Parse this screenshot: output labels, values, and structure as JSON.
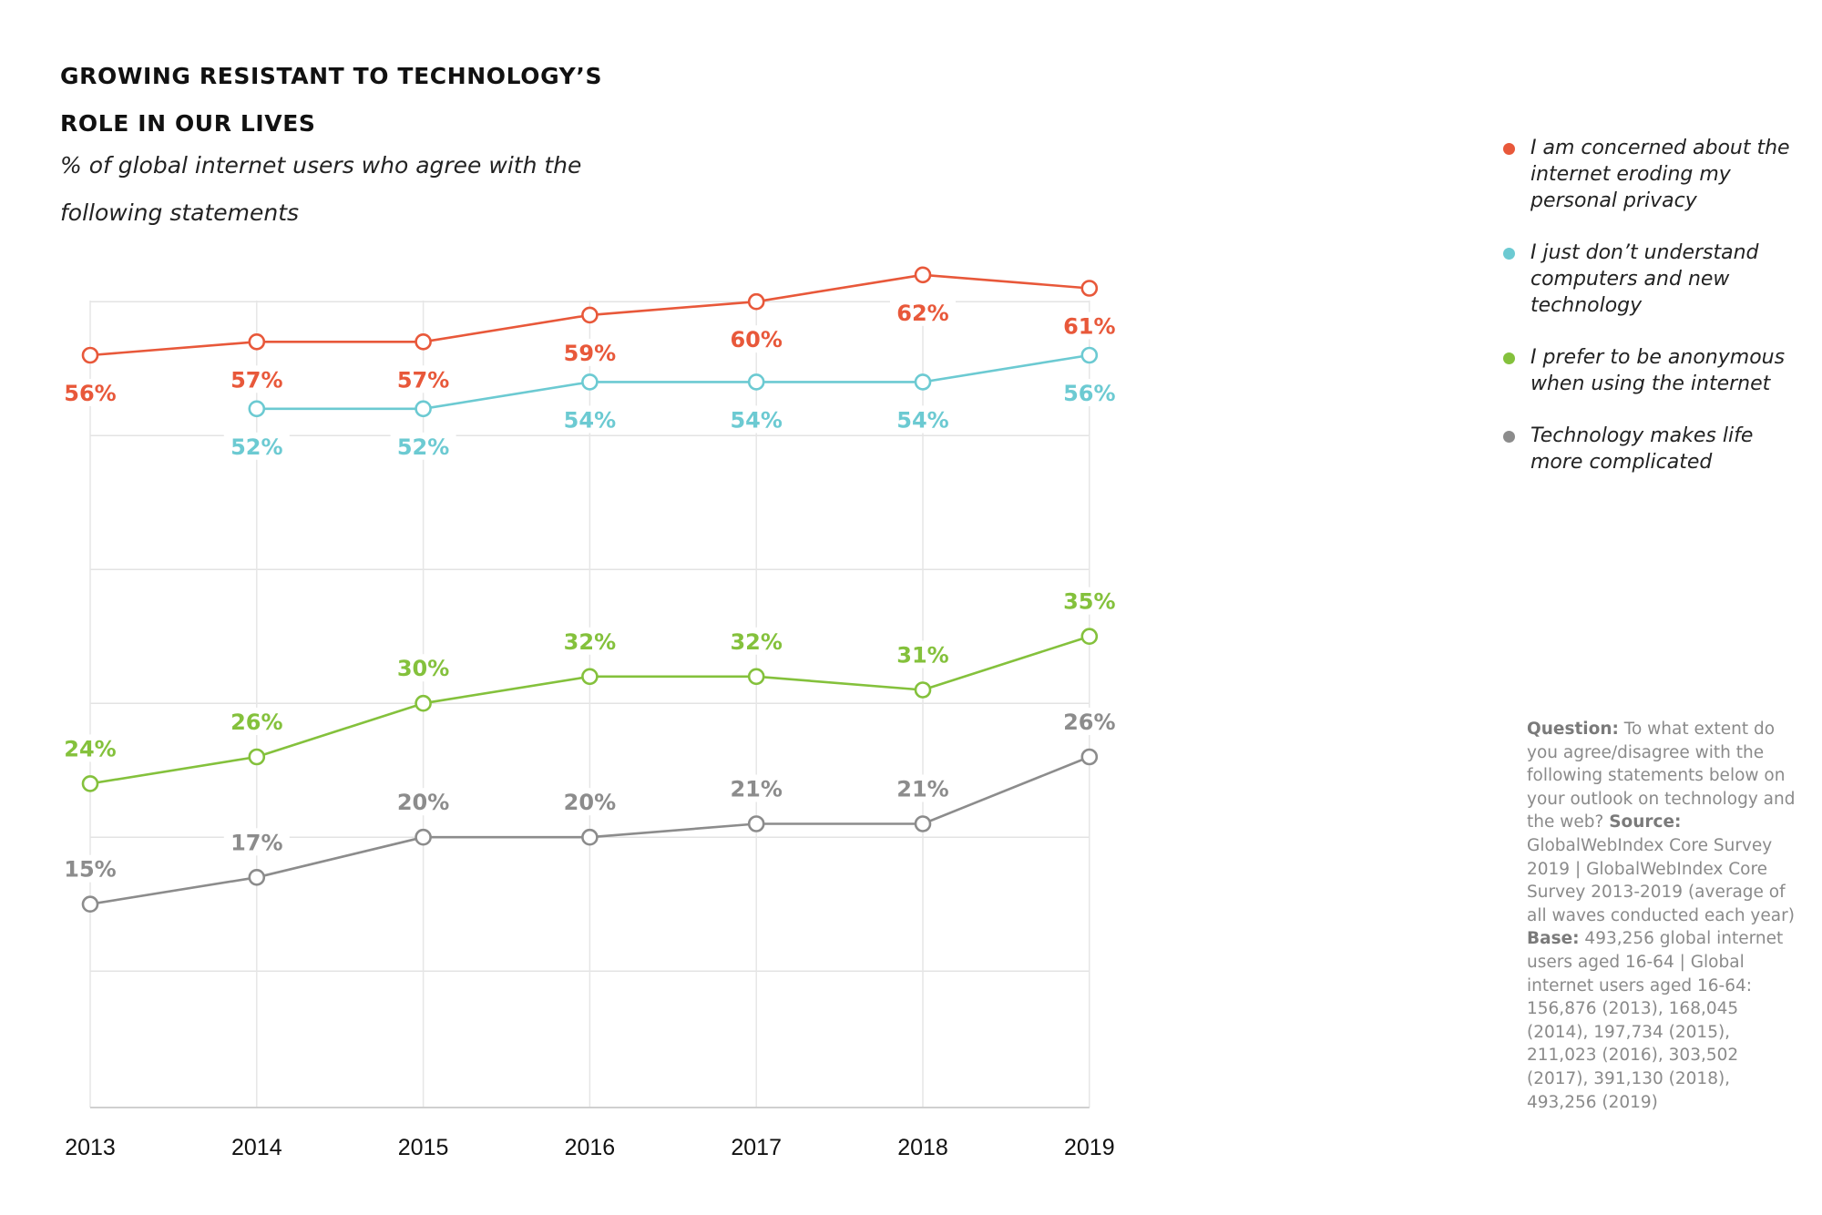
{
  "title": {
    "line1": "GROWING RESISTANT TO TECHNOLOGY’S",
    "line2": "ROLE IN OUR LIVES"
  },
  "subtitle": {
    "line1": "% of global internet users who agree with the",
    "line2": "following statements"
  },
  "note": {
    "question_label": "Question:",
    "question_text": " To what extent do you agree/disagree with the following statements below on your outlook on technology and the web?",
    "source_label": "Source:",
    "source_text": " GlobalWebIndex Core Survey 2019 | GlobalWebIndex Core Survey 2013-2019 (average of all waves conducted each year)",
    "base_label": "Base:",
    "base_text": " 493,256 global internet users aged 16-64 | Global internet users aged 16-64: 156,876 (2013), 168,045 (2014), 197,734 (2015), 211,023 (2016), 303,502 (2017), 391,130 (2018), 493,256 (2019)"
  },
  "chart_data": {
    "type": "line",
    "title": "GROWING RESISTANT TO TECHNOLOGY’S ROLE IN OUR LIVES",
    "subtitle": "% of global internet users who agree with the following statements",
    "xlabel": "",
    "ylabel": "",
    "categories": [
      "2013",
      "2014",
      "2015",
      "2016",
      "2017",
      "2018",
      "2019"
    ],
    "ylim": [
      10,
      65
    ],
    "grid": true,
    "legend_position": "right",
    "value_suffix": "%",
    "series": [
      {
        "name": "I am concerned about the internet eroding my personal privacy",
        "color": "#e8583a",
        "values": [
          56,
          57,
          57,
          59,
          60,
          62,
          61
        ],
        "label_position": [
          "below",
          "below",
          "below",
          "below",
          "below",
          "below",
          "below"
        ]
      },
      {
        "name": "I just don’t understand computers and new technology",
        "color": "#6ccad2",
        "values": [
          null,
          52,
          52,
          54,
          54,
          54,
          56
        ],
        "label_position": [
          "below",
          "below",
          "below",
          "below",
          "below",
          "below",
          "below"
        ]
      },
      {
        "name": "I prefer to be anonymous when using the internet",
        "color": "#84c13c",
        "values": [
          24,
          26,
          30,
          32,
          32,
          31,
          35
        ],
        "label_position": [
          "above",
          "above",
          "above",
          "above",
          "above",
          "above",
          "above"
        ]
      },
      {
        "name": "Technology makes life more complicated",
        "color": "#8c8c8c",
        "values": [
          15,
          17,
          20,
          20,
          21,
          21,
          26
        ],
        "label_position": [
          "above",
          "above",
          "above",
          "above",
          "above",
          "above",
          "above"
        ]
      }
    ]
  }
}
